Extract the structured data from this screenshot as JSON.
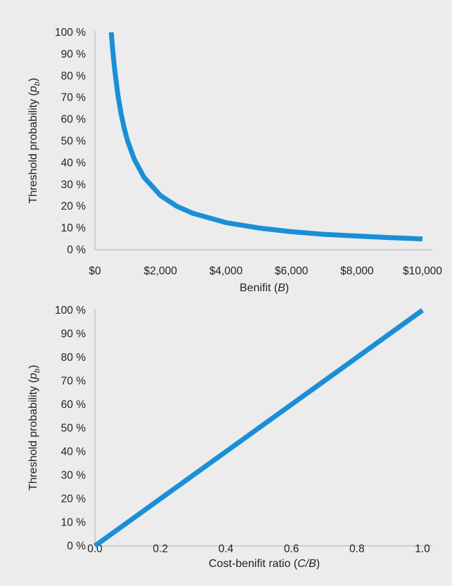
{
  "chart_data": [
    {
      "type": "line",
      "title": "",
      "ylabel_main": "Threshold probability (",
      "ylabel_var": "p",
      "ylabel_sub": "b",
      "ylabel_close": ")",
      "xlabel_main": "Benifit (",
      "xlabel_var": "B",
      "xlabel_close": ")",
      "xlim": [
        0,
        10000
      ],
      "ylim": [
        0,
        100
      ],
      "x_ticks": [
        0,
        2000,
        4000,
        6000,
        8000,
        10000
      ],
      "x_tick_labels": [
        "$0",
        "$2,000",
        "$4,000",
        "$6,000",
        "$8,000",
        "$10,000"
      ],
      "y_ticks": [
        0,
        10,
        20,
        30,
        40,
        50,
        60,
        70,
        80,
        90,
        100
      ],
      "y_tick_labels": [
        "0 %",
        "10 %",
        "20 %",
        "30 %",
        "40 %",
        "50 %",
        "60 %",
        "70 %",
        "80 %",
        "90 %",
        "100 %"
      ],
      "grid": false,
      "series": [
        {
          "color": "#1a8fd6",
          "x": [
            500,
            550,
            600,
            700,
            800,
            900,
            1000,
            1200,
            1500,
            2000,
            2500,
            3000,
            4000,
            5000,
            6000,
            7000,
            8000,
            9000,
            10000
          ],
          "y": [
            100,
            90.9,
            83.3,
            71.4,
            62.5,
            55.6,
            50,
            41.7,
            33.3,
            25,
            20,
            16.7,
            12.5,
            10,
            8.3,
            7.1,
            6.3,
            5.6,
            5
          ]
        }
      ]
    },
    {
      "type": "line",
      "title": "",
      "ylabel_main": "Threshold probability (",
      "ylabel_var": "p",
      "ylabel_sub": "b",
      "ylabel_close": ")",
      "xlabel_main": "Cost-benifit ratio (",
      "xlabel_var": "C/B",
      "xlabel_close": ")",
      "xlim": [
        0,
        1
      ],
      "ylim": [
        0,
        100
      ],
      "x_ticks": [
        0,
        0.2,
        0.4,
        0.6,
        0.8,
        1.0
      ],
      "x_tick_labels": [
        "0.0",
        "0.2",
        "0.4",
        "0.6",
        "0.8",
        "1.0"
      ],
      "y_ticks": [
        0,
        10,
        20,
        30,
        40,
        50,
        60,
        70,
        80,
        90,
        100
      ],
      "y_tick_labels": [
        "0 %",
        "10 %",
        "20 %",
        "30 %",
        "40 %",
        "50 %",
        "60 %",
        "70 %",
        "80 %",
        "90 %",
        "100 %"
      ],
      "grid": false,
      "series": [
        {
          "color": "#1a8fd6",
          "x": [
            0,
            1
          ],
          "y": [
            0,
            100
          ]
        }
      ]
    }
  ]
}
